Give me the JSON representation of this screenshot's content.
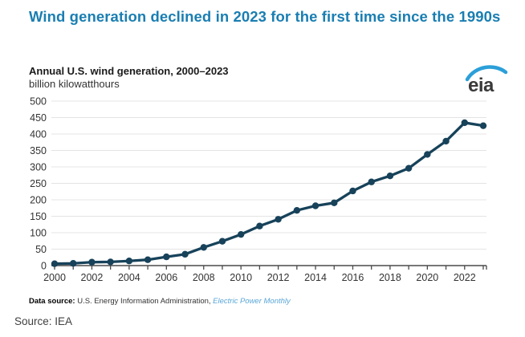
{
  "title": "Wind generation declined in 2023 for the first time since the 1990s",
  "chart_header": {
    "title": "Annual U.S. wind generation, 2000–2023",
    "units": "billion kilowatthours"
  },
  "logo": {
    "text": "eia"
  },
  "footer": {
    "datasource_label": "Data source:",
    "datasource_text": " U.S. Energy Information Administration, ",
    "datasource_link": "Electric Power Monthly",
    "source": "Source: IEA"
  },
  "colors": {
    "title_blue": "#1a7eb2",
    "line": "#17425a",
    "grid": "#e4e4e4",
    "axis": "#4a4a4a",
    "tick_text": "#333333",
    "link_blue": "#58a6d7",
    "logo_swoosh": "#2b9fd8",
    "logo_text": "#3a3a3a"
  },
  "chart_data": {
    "type": "line",
    "title": "Annual U.S. wind generation, 2000–2023",
    "ylabel": "billion kilowatthours",
    "x": [
      2000,
      2001,
      2002,
      2003,
      2004,
      2005,
      2006,
      2007,
      2008,
      2009,
      2010,
      2011,
      2012,
      2013,
      2014,
      2015,
      2016,
      2017,
      2018,
      2019,
      2020,
      2021,
      2022,
      2023
    ],
    "series": [
      {
        "name": "Annual U.S. wind generation",
        "values": [
          5.6,
          6.7,
          10.4,
          11.2,
          14.1,
          17.8,
          26.6,
          34.5,
          55.4,
          73.9,
          94.7,
          120.2,
          140.8,
          167.8,
          181.7,
          190.7,
          226.9,
          254.3,
          272.7,
          295.9,
          337.9,
          378.2,
          434.3,
          425.2
        ]
      }
    ],
    "ylim": [
      0,
      500
    ],
    "ytick_step": 50,
    "xtick_labels": [
      2000,
      2002,
      2004,
      2006,
      2008,
      2010,
      2012,
      2014,
      2016,
      2018,
      2020,
      2022
    ],
    "grid": true,
    "legend": false
  }
}
